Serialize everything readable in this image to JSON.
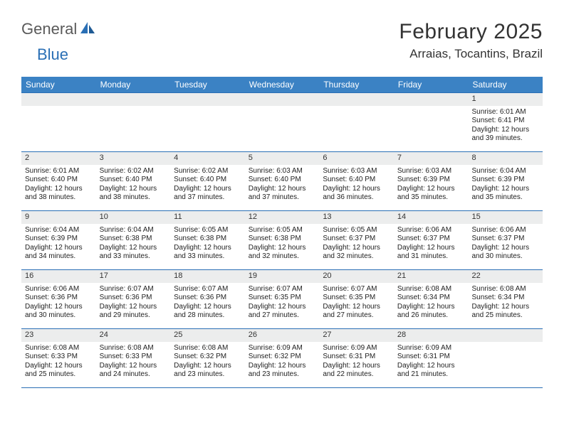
{
  "logo": {
    "text1": "General",
    "text2": "Blue"
  },
  "title": "February 2025",
  "location": "Arraias, Tocantins, Brazil",
  "colors": {
    "header_bg": "#3b82c4",
    "border": "#2a6fb5",
    "stripe": "#eceded",
    "logo_gray": "#5a5a5a",
    "logo_blue": "#2a6fb5"
  },
  "day_names": [
    "Sunday",
    "Monday",
    "Tuesday",
    "Wednesday",
    "Thursday",
    "Friday",
    "Saturday"
  ],
  "weeks": [
    [
      null,
      null,
      null,
      null,
      null,
      null,
      {
        "n": "1",
        "sunrise": "6:01 AM",
        "sunset": "6:41 PM",
        "dl_h": "12",
        "dl_m": "39"
      }
    ],
    [
      {
        "n": "2",
        "sunrise": "6:01 AM",
        "sunset": "6:40 PM",
        "dl_h": "12",
        "dl_m": "38"
      },
      {
        "n": "3",
        "sunrise": "6:02 AM",
        "sunset": "6:40 PM",
        "dl_h": "12",
        "dl_m": "38"
      },
      {
        "n": "4",
        "sunrise": "6:02 AM",
        "sunset": "6:40 PM",
        "dl_h": "12",
        "dl_m": "37"
      },
      {
        "n": "5",
        "sunrise": "6:03 AM",
        "sunset": "6:40 PM",
        "dl_h": "12",
        "dl_m": "37"
      },
      {
        "n": "6",
        "sunrise": "6:03 AM",
        "sunset": "6:40 PM",
        "dl_h": "12",
        "dl_m": "36"
      },
      {
        "n": "7",
        "sunrise": "6:03 AM",
        "sunset": "6:39 PM",
        "dl_h": "12",
        "dl_m": "35"
      },
      {
        "n": "8",
        "sunrise": "6:04 AM",
        "sunset": "6:39 PM",
        "dl_h": "12",
        "dl_m": "35"
      }
    ],
    [
      {
        "n": "9",
        "sunrise": "6:04 AM",
        "sunset": "6:39 PM",
        "dl_h": "12",
        "dl_m": "34"
      },
      {
        "n": "10",
        "sunrise": "6:04 AM",
        "sunset": "6:38 PM",
        "dl_h": "12",
        "dl_m": "33"
      },
      {
        "n": "11",
        "sunrise": "6:05 AM",
        "sunset": "6:38 PM",
        "dl_h": "12",
        "dl_m": "33"
      },
      {
        "n": "12",
        "sunrise": "6:05 AM",
        "sunset": "6:38 PM",
        "dl_h": "12",
        "dl_m": "32"
      },
      {
        "n": "13",
        "sunrise": "6:05 AM",
        "sunset": "6:37 PM",
        "dl_h": "12",
        "dl_m": "32"
      },
      {
        "n": "14",
        "sunrise": "6:06 AM",
        "sunset": "6:37 PM",
        "dl_h": "12",
        "dl_m": "31"
      },
      {
        "n": "15",
        "sunrise": "6:06 AM",
        "sunset": "6:37 PM",
        "dl_h": "12",
        "dl_m": "30"
      }
    ],
    [
      {
        "n": "16",
        "sunrise": "6:06 AM",
        "sunset": "6:36 PM",
        "dl_h": "12",
        "dl_m": "30"
      },
      {
        "n": "17",
        "sunrise": "6:07 AM",
        "sunset": "6:36 PM",
        "dl_h": "12",
        "dl_m": "29"
      },
      {
        "n": "18",
        "sunrise": "6:07 AM",
        "sunset": "6:36 PM",
        "dl_h": "12",
        "dl_m": "28"
      },
      {
        "n": "19",
        "sunrise": "6:07 AM",
        "sunset": "6:35 PM",
        "dl_h": "12",
        "dl_m": "27"
      },
      {
        "n": "20",
        "sunrise": "6:07 AM",
        "sunset": "6:35 PM",
        "dl_h": "12",
        "dl_m": "27"
      },
      {
        "n": "21",
        "sunrise": "6:08 AM",
        "sunset": "6:34 PM",
        "dl_h": "12",
        "dl_m": "26"
      },
      {
        "n": "22",
        "sunrise": "6:08 AM",
        "sunset": "6:34 PM",
        "dl_h": "12",
        "dl_m": "25"
      }
    ],
    [
      {
        "n": "23",
        "sunrise": "6:08 AM",
        "sunset": "6:33 PM",
        "dl_h": "12",
        "dl_m": "25"
      },
      {
        "n": "24",
        "sunrise": "6:08 AM",
        "sunset": "6:33 PM",
        "dl_h": "12",
        "dl_m": "24"
      },
      {
        "n": "25",
        "sunrise": "6:08 AM",
        "sunset": "6:32 PM",
        "dl_h": "12",
        "dl_m": "23"
      },
      {
        "n": "26",
        "sunrise": "6:09 AM",
        "sunset": "6:32 PM",
        "dl_h": "12",
        "dl_m": "23"
      },
      {
        "n": "27",
        "sunrise": "6:09 AM",
        "sunset": "6:31 PM",
        "dl_h": "12",
        "dl_m": "22"
      },
      {
        "n": "28",
        "sunrise": "6:09 AM",
        "sunset": "6:31 PM",
        "dl_h": "12",
        "dl_m": "21"
      },
      null
    ]
  ],
  "labels": {
    "sunrise": "Sunrise:",
    "sunset": "Sunset:",
    "daylight": "Daylight:",
    "hours": "hours",
    "and": "and",
    "minutes": "minutes."
  }
}
